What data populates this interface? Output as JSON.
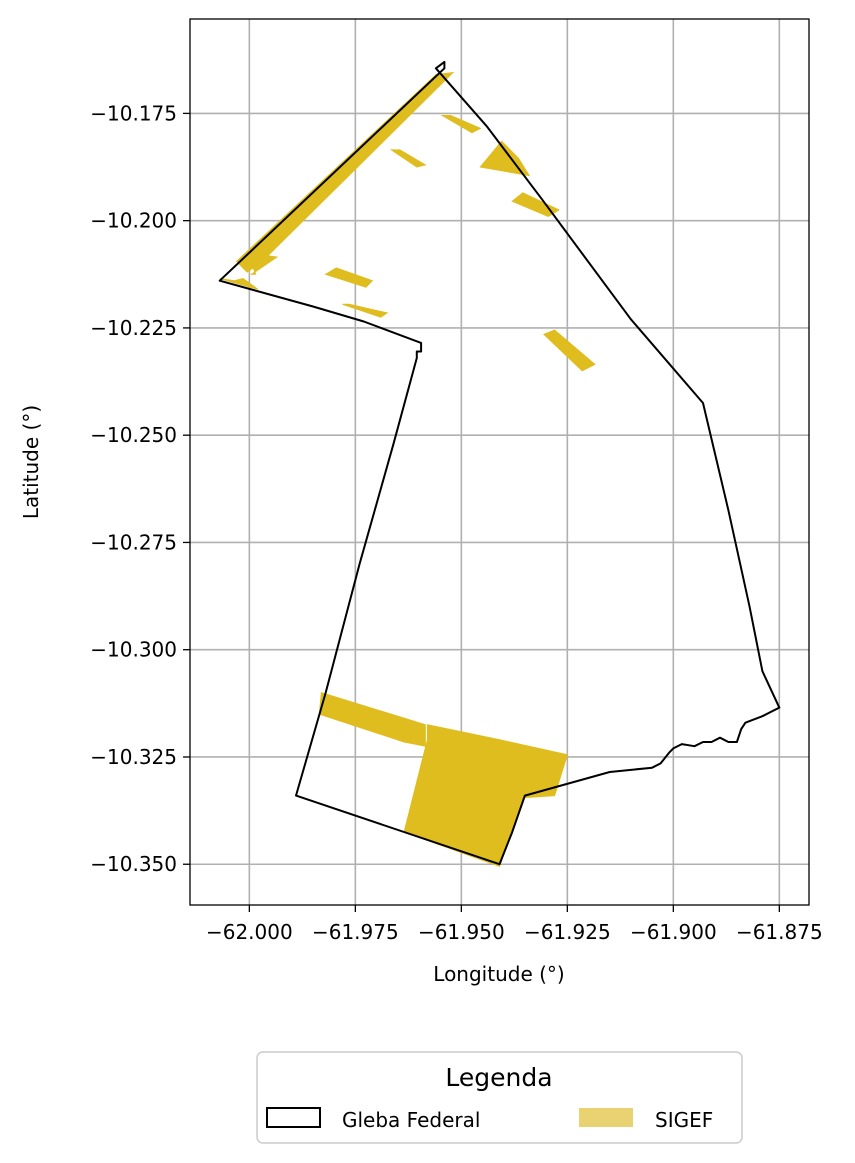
{
  "chart_data": {
    "type": "map",
    "xlabel": "Longitude (°)",
    "ylabel": "Latitude (°)",
    "xlim": [
      -62.014,
      -61.868
    ],
    "ylim": [
      -10.3595,
      -10.153
    ],
    "grid": true,
    "x_ticks": [
      -62.0,
      -61.975,
      -61.95,
      -61.925,
      -61.9,
      -61.875
    ],
    "x_tick_labels": [
      "−62.000",
      "−61.975",
      "−61.950",
      "−61.925",
      "−61.900",
      "−61.875"
    ],
    "y_ticks": [
      -10.175,
      -10.2,
      -10.225,
      -10.25,
      -10.275,
      -10.3,
      -10.325,
      -10.35
    ],
    "y_tick_labels": [
      "−10.175",
      "−10.200",
      "−10.225",
      "−10.250",
      "−10.275",
      "−10.300",
      "−10.325",
      "−10.350"
    ],
    "colors": {
      "gleba_edge": "#000000",
      "sigef_fill": "#dfbd1f",
      "sigef_legend": "#e8d272",
      "grid": "#b0b0b0"
    },
    "legend": {
      "title": "Legenda",
      "placement": "bottom-center",
      "entries": [
        {
          "label": "Gleba Federal",
          "style": "outline"
        },
        {
          "label": "SIGEF",
          "style": "fill"
        }
      ]
    },
    "gleba_boundary": [
      [
        -61.954,
        -10.163
      ],
      [
        -61.956,
        -10.1645
      ],
      [
        -61.944,
        -10.178
      ],
      [
        -61.931,
        -10.195
      ],
      [
        -61.91,
        -10.223
      ],
      [
        -61.893,
        -10.2425
      ],
      [
        -61.887,
        -10.2675
      ],
      [
        -61.882,
        -10.29
      ],
      [
        -61.879,
        -10.305
      ],
      [
        -61.875,
        -10.3135
      ],
      [
        -61.879,
        -10.3155
      ],
      [
        -61.883,
        -10.317
      ],
      [
        -61.884,
        -10.3185
      ],
      [
        -61.885,
        -10.3215
      ],
      [
        -61.887,
        -10.3215
      ],
      [
        -61.889,
        -10.3205
      ],
      [
        -61.891,
        -10.3215
      ],
      [
        -61.893,
        -10.3215
      ],
      [
        -61.895,
        -10.3225
      ],
      [
        -61.898,
        -10.322
      ],
      [
        -61.9,
        -10.323
      ],
      [
        -61.901,
        -10.324
      ],
      [
        -61.903,
        -10.3265
      ],
      [
        -61.905,
        -10.3275
      ],
      [
        -61.915,
        -10.3285
      ],
      [
        -61.935,
        -10.334
      ],
      [
        -61.938,
        -10.3425
      ],
      [
        -61.941,
        -10.35
      ],
      [
        -61.989,
        -10.334
      ],
      [
        -61.982,
        -10.31
      ],
      [
        -61.974,
        -10.28
      ],
      [
        -61.966,
        -10.252
      ],
      [
        -61.9605,
        -10.232
      ],
      [
        -61.9605,
        -10.2305
      ],
      [
        -61.9595,
        -10.2305
      ],
      [
        -61.9595,
        -10.2285
      ],
      [
        -61.973,
        -10.2235
      ],
      [
        -61.985,
        -10.22
      ],
      [
        -62.007,
        -10.214
      ],
      [
        -61.954,
        -10.1645
      ]
    ],
    "sigef_parcels": [
      [
        [
          -61.956,
          -10.166
        ],
        [
          -61.952,
          -10.1655
        ],
        [
          -61.997,
          -10.2095
        ],
        [
          -62.0005,
          -10.212
        ],
        [
          -62.003,
          -10.2095
        ]
      ],
      [
        [
          -62.007,
          -10.2135
        ],
        [
          -62.0035,
          -10.214
        ],
        [
          -62.0015,
          -10.2135
        ],
        [
          -61.998,
          -10.216
        ]
      ],
      [
        [
          -62.0005,
          -10.2075
        ],
        [
          -61.9935,
          -10.2085
        ],
        [
          -61.9995,
          -10.2125
        ],
        [
          -61.9985,
          -10.2125
        ]
      ],
      [
        [
          -61.982,
          -10.2125
        ],
        [
          -61.9795,
          -10.211
        ],
        [
          -61.971,
          -10.214
        ],
        [
          -61.9725,
          -10.2155
        ]
      ],
      [
        [
          -61.978,
          -10.2195
        ],
        [
          -61.9765,
          -10.2195
        ],
        [
          -61.9675,
          -10.2215
        ],
        [
          -61.969,
          -10.2225
        ]
      ],
      [
        [
          -61.9665,
          -10.1835
        ],
        [
          -61.9645,
          -10.1835
        ],
        [
          -61.9585,
          -10.187
        ],
        [
          -61.9605,
          -10.1875
        ]
      ],
      [
        [
          -61.9545,
          -10.1755
        ],
        [
          -61.9525,
          -10.1755
        ],
        [
          -61.9455,
          -10.1785
        ],
        [
          -61.9475,
          -10.1795
        ]
      ],
      [
        [
          -61.9455,
          -10.1875
        ],
        [
          -61.9405,
          -10.1815
        ],
        [
          -61.9365,
          -10.1855
        ],
        [
          -61.934,
          -10.1895
        ]
      ],
      [
        [
          -61.938,
          -10.1955
        ],
        [
          -61.9355,
          -10.1935
        ],
        [
          -61.927,
          -10.1975
        ],
        [
          -61.9295,
          -10.199
        ]
      ],
      [
        [
          -61.9305,
          -10.2265
        ],
        [
          -61.928,
          -10.2255
        ],
        [
          -61.9185,
          -10.2335
        ],
        [
          -61.9215,
          -10.235
        ]
      ],
      [
        [
          -61.983,
          -10.31
        ],
        [
          -61.9835,
          -10.315
        ],
        [
          -61.9635,
          -10.3215
        ],
        [
          -61.9585,
          -10.3225
        ],
        [
          -61.9585,
          -10.3175
        ]
      ],
      [
        [
          -61.958,
          -10.3175
        ],
        [
          -61.941,
          -10.321
        ],
        [
          -61.925,
          -10.3245
        ],
        [
          -61.928,
          -10.334
        ],
        [
          -61.9355,
          -10.3345
        ],
        [
          -61.9385,
          -10.3435
        ],
        [
          -61.941,
          -10.3505
        ],
        [
          -61.9635,
          -10.3425
        ],
        [
          -61.958,
          -10.321
        ]
      ]
    ]
  }
}
